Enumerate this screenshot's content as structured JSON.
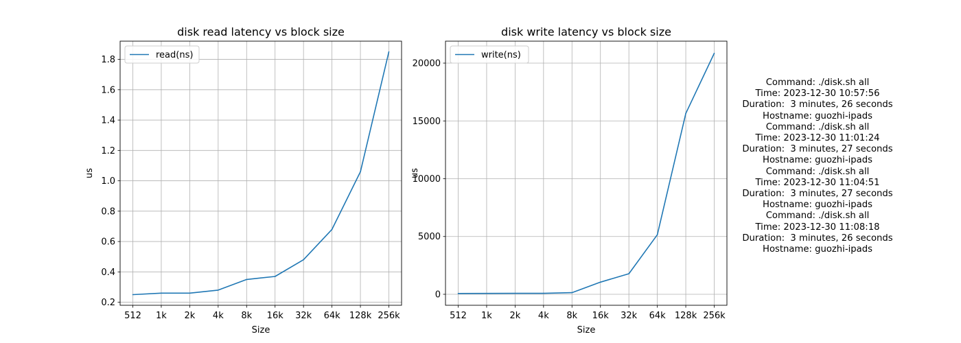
{
  "chart_data": [
    {
      "type": "line",
      "title": "disk read latency vs block size",
      "xlabel": "Size",
      "ylabel": "us",
      "categories": [
        "512",
        "1k",
        "2k",
        "4k",
        "8k",
        "16k",
        "32k",
        "64k",
        "128k",
        "256k"
      ],
      "series": [
        {
          "name": "read(ns)",
          "color": "#1f77b4",
          "values": [
            0.25,
            0.26,
            0.26,
            0.28,
            0.35,
            0.37,
            0.48,
            0.68,
            1.06,
            1.85
          ]
        }
      ],
      "ylim": [
        0.18,
        1.92
      ],
      "yticks": [
        0.2,
        0.4,
        0.6,
        0.8,
        1.0,
        1.2,
        1.4,
        1.6,
        1.8
      ],
      "ytick_labels": [
        "0.2",
        "0.4",
        "0.6",
        "0.8",
        "1.0",
        "1.2",
        "1.4",
        "1.6",
        "1.8"
      ],
      "grid": true,
      "legend": "upper-left"
    },
    {
      "type": "line",
      "title": "disk write latency vs block size",
      "xlabel": "Size",
      "ylabel": "us",
      "categories": [
        "512",
        "1k",
        "2k",
        "4k",
        "8k",
        "16k",
        "32k",
        "64k",
        "128k",
        "256k"
      ],
      "series": [
        {
          "name": "write(ns)",
          "color": "#1f77b4",
          "values": [
            70,
            75,
            80,
            85,
            140,
            1050,
            1780,
            5150,
            15650,
            20850
          ]
        }
      ],
      "ylim": [
        -950,
        21900
      ],
      "yticks": [
        0,
        5000,
        10000,
        15000,
        20000
      ],
      "ytick_labels": [
        "0",
        "5000",
        "10000",
        "15000",
        "20000"
      ],
      "grid": true,
      "legend": "upper-left"
    }
  ],
  "info_lines": [
    "Command: ./disk.sh all",
    "Time: 2023-12-30 10:57:56",
    "Duration:  3 minutes, 26 seconds",
    "Hostname: guozhi-ipads",
    "Command: ./disk.sh all",
    "Time: 2023-12-30 11:01:24",
    "Duration:  3 minutes, 27 seconds",
    "Hostname: guozhi-ipads",
    "Command: ./disk.sh all",
    "Time: 2023-12-30 11:04:51",
    "Duration:  3 minutes, 27 seconds",
    "Hostname: guozhi-ipads",
    "Command: ./disk.sh all",
    "Time: 2023-12-30 11:08:18",
    "Duration:  3 minutes, 26 seconds",
    "Hostname: guozhi-ipads"
  ]
}
